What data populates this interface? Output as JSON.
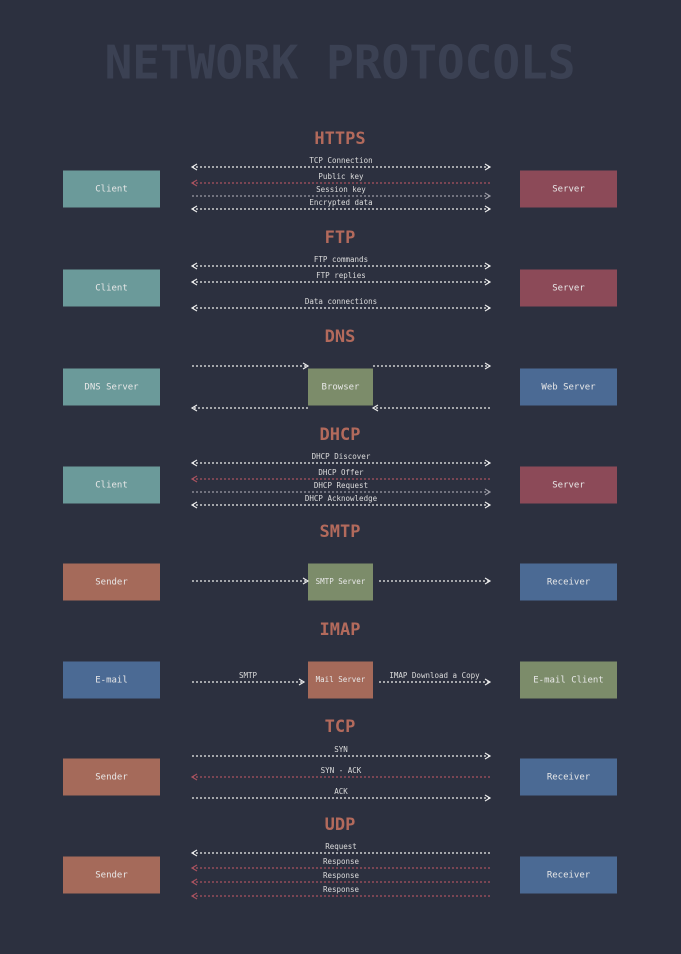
{
  "title": "NETWORK PROTOCOLS",
  "sections": [
    {
      "name": "HTTPS",
      "left": "Client",
      "right": "Server",
      "arrows": [
        "TCP Connection",
        "Public key",
        "Session key",
        "Encrypted data"
      ]
    },
    {
      "name": "FTP",
      "left": "Client",
      "right": "Server",
      "arrows": [
        "FTP commands",
        "FTP replies",
        "Data connections"
      ]
    },
    {
      "name": "DNS",
      "left": "DNS Server",
      "middle": "Browser",
      "right": "Web Server"
    },
    {
      "name": "DHCP",
      "left": "Client",
      "right": "Server",
      "arrows": [
        "DHCP Discover",
        "DHCP Offer",
        "DHCP Request",
        "DHCP Acknowledge"
      ]
    },
    {
      "name": "SMTP",
      "left": "Sender",
      "middle": "SMTP Server",
      "right": "Receiver"
    },
    {
      "name": "IMAP",
      "left": "E-mail",
      "middle": "Mail Server",
      "right": "E-mail Client",
      "arrows": [
        "SMTP",
        "IMAP Download a Copy"
      ]
    },
    {
      "name": "TCP",
      "left": "Sender",
      "right": "Receiver",
      "arrows": [
        "SYN",
        "SYN - ACK",
        "ACK"
      ]
    },
    {
      "name": "UDP",
      "left": "Sender",
      "right": "Receiver",
      "arrows": [
        "Request",
        "Response",
        "Response",
        "Response"
      ]
    }
  ]
}
